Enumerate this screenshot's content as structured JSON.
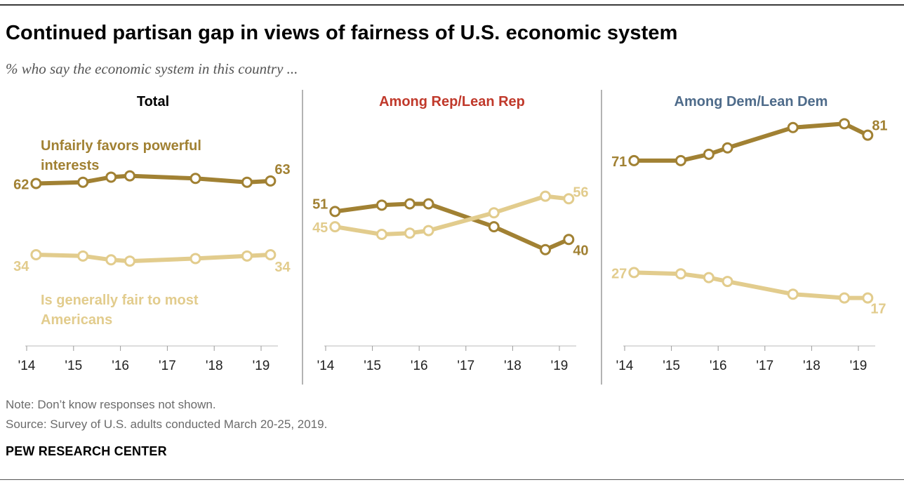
{
  "title": "Continued partisan gap in views of fairness of U.S. economic system",
  "subtitle": "% who say the economic system in this country ...",
  "note": "Note: Don’t know responses not shown.",
  "source": "Source: Survey of U.S. adults conducted March 20-25, 2019.",
  "organization": "PEW RESEARCH CENTER",
  "colors": {
    "unfair": "#a18133",
    "fair": "#e2cc8d",
    "rep_title": "#c0392b",
    "dem_title": "#4e6b8a"
  },
  "chart_data": [
    {
      "type": "line",
      "title": "Total",
      "title_color": "#000000",
      "x_ticks": [
        "'14",
        "'15",
        "'16",
        "'17",
        "'18",
        "'19"
      ],
      "series": [
        {
          "name": "Unfairly favors powerful interests",
          "color": "#a18133",
          "x": [
            2014.2,
            2015.2,
            2015.8,
            2016.2,
            2017.6,
            2018.7,
            2019.2
          ],
          "values": [
            62,
            62.5,
            64.5,
            65,
            64,
            62.5,
            63
          ]
        },
        {
          "name": "Is generally fair to most Americans",
          "color": "#e2cc8d",
          "x": [
            2014.2,
            2015.2,
            2015.8,
            2016.2,
            2017.6,
            2018.7,
            2019.2
          ],
          "values": [
            34,
            33.5,
            32,
            31.5,
            32.5,
            33.5,
            34
          ]
        }
      ],
      "start_labels": [
        "62",
        "34"
      ],
      "end_labels": [
        "63",
        "34"
      ]
    },
    {
      "type": "line",
      "title": "Among Rep/Lean Rep",
      "title_color": "#c0392b",
      "x_ticks": [
        "'14",
        "'15",
        "'16",
        "'17",
        "'18",
        "'19"
      ],
      "series": [
        {
          "name": "Unfairly favors powerful interests",
          "color": "#a18133",
          "x": [
            2014.2,
            2015.2,
            2015.8,
            2016.2,
            2017.6,
            2018.7,
            2019.2
          ],
          "values": [
            51,
            53.5,
            54,
            54,
            45,
            36,
            40
          ]
        },
        {
          "name": "Is generally fair to most Americans",
          "color": "#e2cc8d",
          "x": [
            2014.2,
            2015.2,
            2015.8,
            2016.2,
            2017.6,
            2018.7,
            2019.2
          ],
          "values": [
            45,
            42,
            42.5,
            43.5,
            50.5,
            57,
            56
          ]
        }
      ],
      "start_labels": [
        "51",
        "45"
      ],
      "end_labels": [
        "40",
        "56"
      ]
    },
    {
      "type": "line",
      "title": "Among Dem/Lean Dem",
      "title_color": "#4e6b8a",
      "x_ticks": [
        "'14",
        "'15",
        "'16",
        "'17",
        "'18",
        "'19"
      ],
      "series": [
        {
          "name": "Unfairly favors powerful interests",
          "color": "#a18133",
          "x": [
            2014.2,
            2015.2,
            2015.8,
            2016.2,
            2017.6,
            2018.7,
            2019.2
          ],
          "values": [
            71,
            71,
            73.5,
            76,
            84,
            85.5,
            81
          ]
        },
        {
          "name": "Is generally fair to most Americans",
          "color": "#e2cc8d",
          "x": [
            2014.2,
            2015.2,
            2015.8,
            2016.2,
            2017.6,
            2018.7,
            2019.2
          ],
          "values": [
            27,
            26.5,
            25,
            23.5,
            18.5,
            17,
            17
          ]
        }
      ],
      "start_labels": [
        "71",
        "27"
      ],
      "end_labels": [
        "81",
        "17"
      ]
    }
  ],
  "series_labels": {
    "unfair": [
      "Unfairly favors powerful",
      "interests"
    ],
    "fair": [
      "Is generally fair to most",
      "Americans"
    ]
  }
}
